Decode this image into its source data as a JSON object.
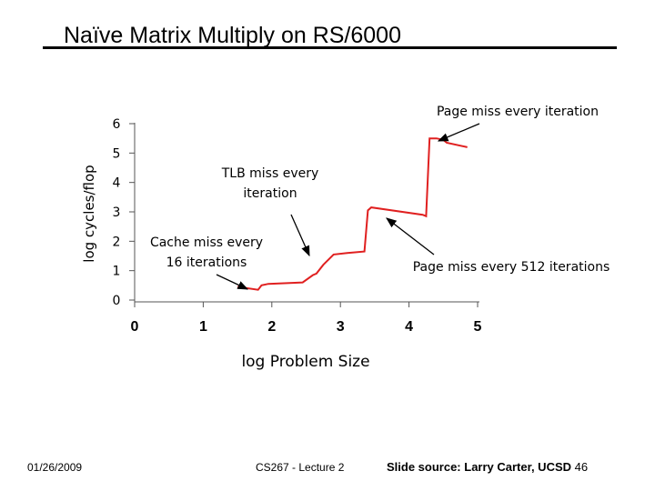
{
  "slide": {
    "title": "Naïve Matrix Multiply on RS/6000",
    "footer_date": "01/26/2009",
    "footer_lecture": "CS267 - Lecture 2",
    "footer_source": "Slide source: Larry Carter, UCSD",
    "page_number": "46"
  },
  "chart_data": {
    "type": "line",
    "title": "",
    "xlabel": "log Problem Size",
    "ylabel": "log cycles/flop",
    "xlim": [
      0,
      5
    ],
    "ylim": [
      0,
      6
    ],
    "x_ticks": [
      "0",
      "1",
      "2",
      "3",
      "4",
      "5"
    ],
    "y_ticks": [
      "0",
      "1",
      "2",
      "3",
      "4",
      "5",
      "6"
    ],
    "grid": false,
    "line_color": "#e02020",
    "series": [
      {
        "x": [
          1.5,
          1.8,
          1.85,
          1.95,
          2.45,
          2.6,
          2.65,
          2.75,
          2.9,
          3.1,
          3.35,
          3.4,
          3.45,
          4.2,
          4.25,
          4.3,
          4.4,
          4.5,
          4.55,
          4.85
        ],
        "y": [
          0.45,
          0.35,
          0.5,
          0.55,
          0.6,
          0.85,
          0.9,
          1.2,
          1.55,
          1.6,
          1.65,
          3.05,
          3.15,
          2.9,
          2.85,
          5.5,
          5.5,
          5.45,
          5.35,
          5.2
        ]
      }
    ],
    "annotations": [
      {
        "text": "Page miss every iteration",
        "x": 4.4,
        "y": 5.5,
        "line_break": false,
        "anchor": "right"
      },
      {
        "text": "TLB miss every iteration",
        "x": 2.6,
        "y": 1.5,
        "line_break": true,
        "anchor": "center"
      },
      {
        "text": "Cache miss every 16 iterations",
        "x": 1.55,
        "y": 0.5,
        "line_break": true,
        "anchor": "center"
      },
      {
        "text": "Page miss every 512 iterations",
        "x": 3.4,
        "y": 3.0,
        "line_break": false,
        "anchor": "center"
      }
    ]
  }
}
